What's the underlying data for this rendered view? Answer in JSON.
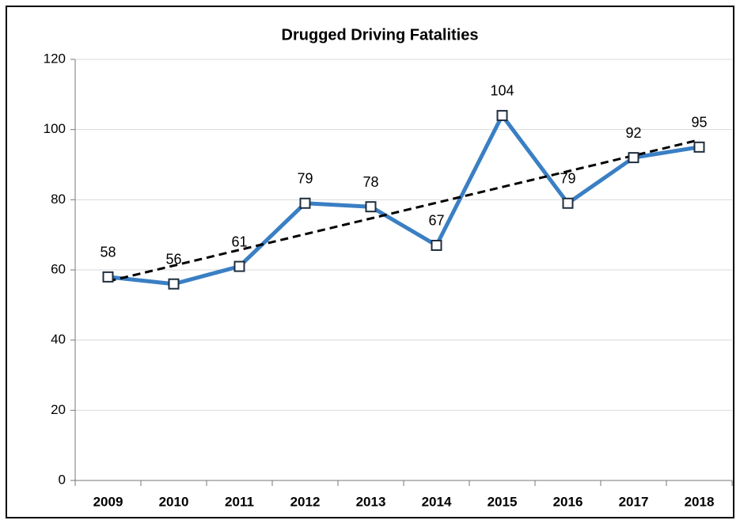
{
  "chart_data": {
    "type": "line",
    "title": "Drugged Driving Fatalities",
    "categories": [
      "2009",
      "2010",
      "2011",
      "2012",
      "2013",
      "2014",
      "2015",
      "2016",
      "2017",
      "2018"
    ],
    "values": [
      58,
      56,
      61,
      79,
      78,
      67,
      104,
      79,
      92,
      95
    ],
    "color": "#3a7fc4",
    "ylim": [
      0,
      120
    ],
    "yticks": [
      0,
      20,
      40,
      60,
      80,
      100,
      120
    ],
    "grid": true,
    "trendline": "linear",
    "data_labels": true
  }
}
